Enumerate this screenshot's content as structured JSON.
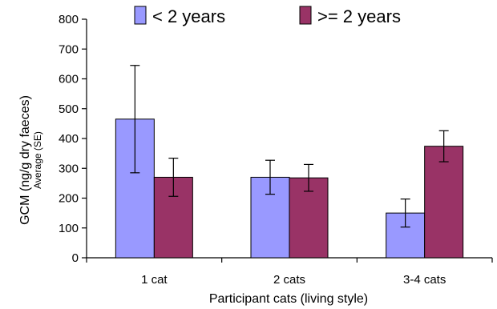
{
  "chart_data": {
    "type": "bar",
    "categories": [
      "1 cat",
      "2 cats",
      "3-4 cats"
    ],
    "series": [
      {
        "name": "< 2 years",
        "values": [
          465,
          270,
          150
        ],
        "errors": [
          180,
          57,
          47
        ],
        "color": "#9999ff"
      },
      {
        "name": ">= 2 years",
        "values": [
          270,
          268,
          374
        ],
        "errors": [
          64,
          45,
          52
        ],
        "color": "#993366"
      }
    ],
    "xlabel": "Participant cats (living style)",
    "ylabel": "GCM (ng/g dry faeces)",
    "ylabel_sub": "Average (SE)",
    "ylim": [
      0,
      800
    ],
    "yticks": [
      0,
      100,
      200,
      300,
      400,
      500,
      600,
      700,
      800
    ],
    "yticklabels": [
      "0",
      "100",
      "200",
      "300",
      "400",
      "500",
      "600",
      "700",
      "800"
    ],
    "grid": false,
    "legend_position": "top"
  }
}
